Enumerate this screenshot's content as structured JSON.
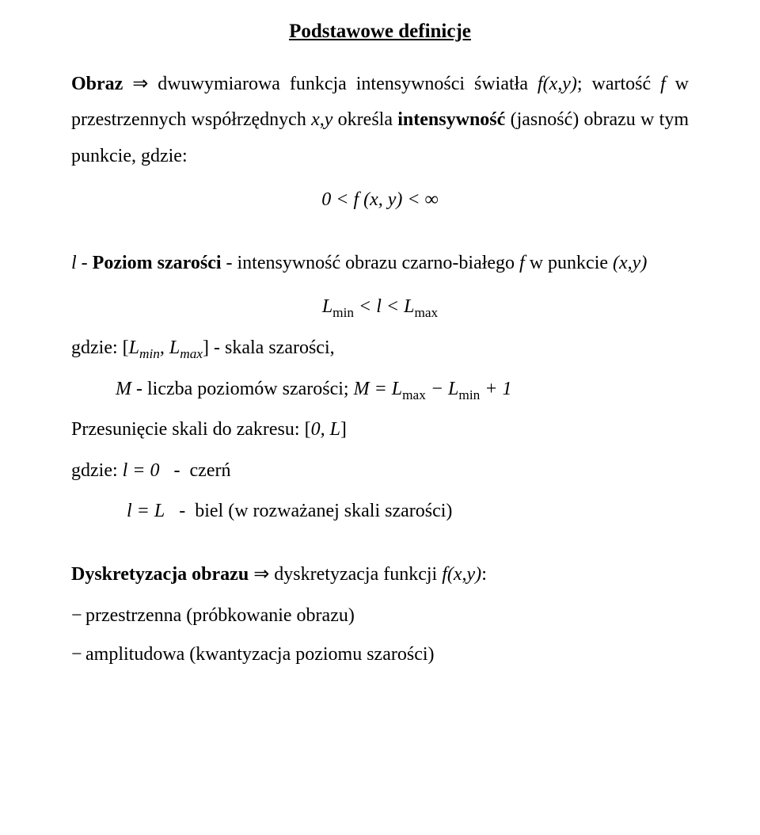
{
  "title": "Podstawowe definicje",
  "p1_pre": "Obraz",
  "p1_arrow": " ⇒ ",
  "p1_rest1": "dwuwymiarowa funkcja intensywności światła ",
  "p1_fxy": "f(x,y)",
  "p1_semicolon": "; ",
  "p1_line2a": "wartość ",
  "p1_f": "f",
  "p1_line2b": " w przestrzennych współrzędnych ",
  "p1_xy": "x,y",
  "p1_line2c": " określa ",
  "p1_bold": "intensywność",
  "p1_line3": " (jasność) obrazu w tym punkcie, gdzie:",
  "eq1": "0 < f (x, y) < ∞",
  "p2_l": "l",
  "p2_txt1": "  -  ",
  "p2_bold": "Poziom szarości",
  "p2_txt2": " - intensywność obrazu czarno-białego ",
  "p2_f": "f",
  "p2_txt3": "  w punkcie ",
  "p2_xy": "(x,y)",
  "eq2_pre": "L",
  "eq2_sub1": "min",
  "eq2_mid": " < l < L",
  "eq2_sub2": "max",
  "p3_a": "gdzie:  [",
  "p3_Lmin": "L",
  "p3_min": "min",
  "p3_comma": ", ",
  "p3_Lmax": "L",
  "p3_max": "max",
  "p3_b": "] - skala szarości,",
  "p4_M": "M",
  "p4_a": "   - liczba poziomów szarości; ",
  "p4_eq_pre": "M = L",
  "p4_eq_sub1": "max",
  "p4_eq_mid": " − L",
  "p4_eq_sub2": "min",
  "p4_eq_end": " + 1",
  "p5_a": "Przesunięcie skali do zakresu: [",
  "p5_zero": "0, L",
  "p5_b": "]",
  "p6_a": "gdzie: ",
  "p6_eq": "l = 0",
  "p6_b": "   -  czerń",
  "p7_eq": "l = L",
  "p7_b": "   -  biel (w rozważanej skali szarości)",
  "p8_bold": "Dyskretyzacja obrazu",
  "p8_arrow": "  ⇒  ",
  "p8_rest": "dyskretyzacja funkcji ",
  "p8_f": "f(x,y)",
  "p8_colon": ":",
  "b1": "przestrzenna (próbkowanie obrazu)",
  "b2": "amplitudowa (kwantyzacja poziomu szarości)"
}
